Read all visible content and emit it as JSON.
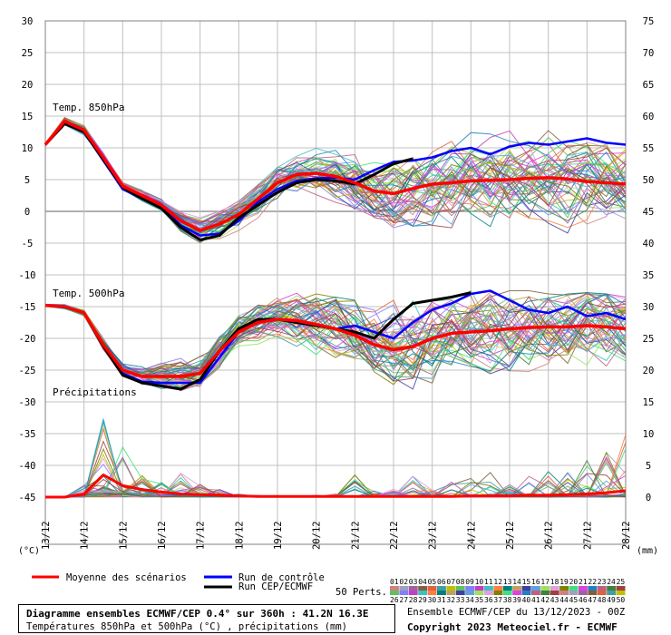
{
  "chart_data": {
    "type": "line",
    "x_start_label": "13/12",
    "x_tick_labels": [
      "13/12",
      "14/12",
      "15/12",
      "16/12",
      "17/12",
      "18/12",
      "19/12",
      "20/12",
      "21/12",
      "22/12",
      "23/12",
      "24/12",
      "25/12",
      "26/12",
      "27/12",
      "28/12"
    ],
    "x_hours": [
      0,
      24,
      48,
      72,
      96,
      120,
      144,
      168,
      192,
      216,
      240,
      264,
      288,
      312,
      336,
      360
    ],
    "left_axis_label": "(°C)",
    "right_axis_label": "(mm)",
    "left_ticks": [
      30,
      25,
      20,
      15,
      10,
      5,
      0,
      -5,
      -10,
      -15,
      -20,
      -25,
      -30,
      -35,
      -40,
      -45
    ],
    "right_ticks": [
      75,
      70,
      65,
      60,
      55,
      50,
      45,
      40,
      35,
      30,
      25,
      20,
      15,
      10,
      5,
      0
    ],
    "left_range": [
      -45,
      30
    ],
    "right_range": [
      0,
      75
    ],
    "grid": true,
    "panel_labels": {
      "t850": "Temp. 850hPa",
      "t500": "Temp. 500hPa",
      "precip": "Précipitations"
    },
    "t850": {
      "mean": [
        10.5,
        14.2,
        12.8,
        8.5,
        4.0,
        2.5,
        1.0,
        -1.5,
        -3.0,
        -2.0,
        -0.5,
        2.0,
        4.5,
        5.8,
        6.0,
        5.5,
        4.5,
        3.2,
        2.8,
        3.6,
        4.3,
        4.5,
        4.8,
        4.9,
        5.0,
        5.2,
        5.3,
        5.1,
        4.7,
        4.5,
        4.3
      ],
      "control": [
        10.5,
        13.8,
        12.5,
        8.0,
        3.5,
        2.0,
        0.8,
        -2.2,
        -3.8,
        -3.5,
        -1.5,
        1.5,
        3.5,
        4.8,
        5.2,
        5.3,
        5.0,
        6.5,
        7.8,
        8.0,
        8.5,
        9.5,
        10.0,
        9.0,
        10.2,
        10.8,
        10.5,
        11.0,
        11.5,
        10.8,
        10.5
      ],
      "deterministic": [
        10.5,
        13.8,
        12.5,
        8.2,
        3.8,
        2.0,
        0.5,
        -2.5,
        -4.5,
        -3.8,
        -1.0,
        1.0,
        3.0,
        4.5,
        5.0,
        4.8,
        4.3,
        5.8,
        7.5,
        8.3
      ],
      "spread_low": [
        10.2,
        13.0,
        11.5,
        7.5,
        3.5,
        1.5,
        0.0,
        -4.0,
        -6.0,
        -5.0,
        -3.0,
        -1.0,
        0.0,
        0.5,
        0.5,
        -1.0,
        -2.0,
        -3.5,
        -4.5,
        -5.0,
        -4.5,
        -5.0,
        -5.5,
        -5.5,
        -5.8,
        -5.0,
        -5.5,
        -6.0,
        -5.5,
        -5.0,
        -5.0
      ],
      "spread_high": [
        11.0,
        14.8,
        13.5,
        9.5,
        5.0,
        3.5,
        2.0,
        0.5,
        -1.0,
        1.0,
        3.0,
        6.0,
        8.5,
        9.5,
        10.0,
        10.5,
        11.0,
        11.5,
        12.0,
        12.5,
        13.0,
        13.5,
        13.5,
        14.0,
        14.0,
        14.0,
        14.5,
        14.0,
        13.5,
        13.0,
        12.5
      ]
    },
    "t500": {
      "mean": [
        -14.8,
        -15.0,
        -16.0,
        -21.0,
        -25.0,
        -26.0,
        -26.0,
        -26.0,
        -25.5,
        -22.0,
        -19.0,
        -17.5,
        -17.0,
        -17.2,
        -17.8,
        -18.5,
        -19.5,
        -21.0,
        -21.8,
        -21.3,
        -20.0,
        -19.2,
        -19.0,
        -18.8,
        -18.5,
        -18.3,
        -18.2,
        -18.2,
        -18.0,
        -18.2,
        -18.5
      ],
      "control": [
        -14.8,
        -15.0,
        -16.0,
        -21.2,
        -25.5,
        -26.8,
        -27.0,
        -27.0,
        -27.0,
        -23.0,
        -19.0,
        -17.5,
        -17.0,
        -17.5,
        -18.0,
        -18.5,
        -18.0,
        -19.0,
        -20.0,
        -17.5,
        -15.5,
        -14.5,
        -13.0,
        -12.5,
        -14.0,
        -15.5,
        -16.0,
        -15.0,
        -16.5,
        -16.0,
        -17.0
      ],
      "deterministic": [
        -14.8,
        -15.0,
        -16.0,
        -21.2,
        -25.8,
        -27.0,
        -27.5,
        -28.0,
        -26.5,
        -22.0,
        -18.5,
        -17.0,
        -17.0,
        -17.5,
        -18.0,
        -18.5,
        -19.0,
        -20.0,
        -17.0,
        -14.5,
        -14.0,
        -13.5,
        -12.8
      ],
      "spread_low": [
        -15.2,
        -15.5,
        -16.8,
        -22.5,
        -27.0,
        -28.5,
        -29.0,
        -29.5,
        -28.5,
        -26.0,
        -23.0,
        -22.0,
        -22.5,
        -24.0,
        -26.0,
        -27.5,
        -28.5,
        -31.0,
        -33.5,
        -34.0,
        -32.0,
        -31.0,
        -32.0,
        -33.0,
        -32.0,
        -31.5,
        -31.5,
        -31.5,
        -31.0,
        -30.5,
        -30.0
      ],
      "spread_high": [
        -14.5,
        -14.5,
        -15.5,
        -20.0,
        -24.0,
        -24.5,
        -23.5,
        -22.0,
        -21.0,
        -18.5,
        -15.5,
        -13.5,
        -12.5,
        -12.5,
        -13.0,
        -13.5,
        -14.0,
        -14.5,
        -14.0,
        -13.5,
        -13.0,
        -13.0,
        -12.5,
        -12.5,
        -12.5,
        -12.5,
        -13.0,
        -13.0,
        -12.8,
        -13.0,
        -13.5
      ]
    },
    "precip": {
      "mean": [
        0,
        0,
        0.5,
        3.5,
        1.8,
        1.2,
        0.8,
        0.5,
        0.4,
        0.3,
        0.2,
        0.1,
        0.1,
        0.1,
        0.1,
        0.1,
        0.1,
        0.1,
        0.1,
        0.1,
        0.1,
        0.1,
        0.2,
        0.2,
        0.2,
        0.3,
        0.3,
        0.4,
        0.5,
        0.7,
        1.0
      ],
      "spread_high": [
        0,
        0,
        2.0,
        13.0,
        8.0,
        3.5,
        2.5,
        4.0,
        2.0,
        1.5,
        0.5,
        0.3,
        0.3,
        0.3,
        0.3,
        0.5,
        3.5,
        1.0,
        1.5,
        4.0,
        1.5,
        2.5,
        3.5,
        4.5,
        2.0,
        4.5,
        5.0,
        5.5,
        6.0,
        8.0,
        12.5
      ]
    },
    "legend": {
      "mean_label": "Moyenne des scénarios",
      "control_label": "Run de contrôle",
      "deterministic_label": "Run CEP/ECMWF",
      "perts_label": "50 Perts.",
      "pert_ids_row1": [
        "01",
        "02",
        "03",
        "04",
        "05",
        "06",
        "07",
        "08",
        "09",
        "10",
        "11",
        "12",
        "13",
        "14",
        "15",
        "16",
        "17",
        "18",
        "19",
        "20",
        "21",
        "22",
        "23",
        "24",
        "25"
      ],
      "pert_ids_row2": [
        "26",
        "27",
        "28",
        "29",
        "30",
        "31",
        "32",
        "33",
        "34",
        "35",
        "36",
        "37",
        "38",
        "39",
        "40",
        "41",
        "42",
        "43",
        "44",
        "45",
        "46",
        "47",
        "48",
        "49",
        "50"
      ]
    },
    "colors": {
      "mean": "#ff0000",
      "control": "#0000ff",
      "deterministic": "#000000",
      "grid": "#c0c0c0",
      "pert_palette": [
        "#d08080",
        "#a0a0c0",
        "#a060a0",
        "#806040",
        "#e06040",
        "#40a0a0",
        "#c0c000",
        "#60c060",
        "#8080ff",
        "#c040c0",
        "#40c0c0",
        "#ff8040",
        "#008080",
        "#c0a060",
        "#4040a0",
        "#60a0e0",
        "#a0e060",
        "#e0a0e0",
        "#808000",
        "#40e080",
        "#e040e0",
        "#2080c0",
        "#c06080",
        "#408040",
        "#a04040"
      ]
    }
  },
  "title": {
    "main": "Diagramme ensembles ECMWF/CEP 0.4° sur 360h : 41.2N 16.3E",
    "sub": "Températures 850hPa et 500hPa (°C) , précipitations (mm)"
  },
  "ensemble_info": "Ensemble ECMWF/CEP du 13/12/2023 - 00Z",
  "copyright": "Copyright 2023 Meteociel.fr - ECMWF"
}
